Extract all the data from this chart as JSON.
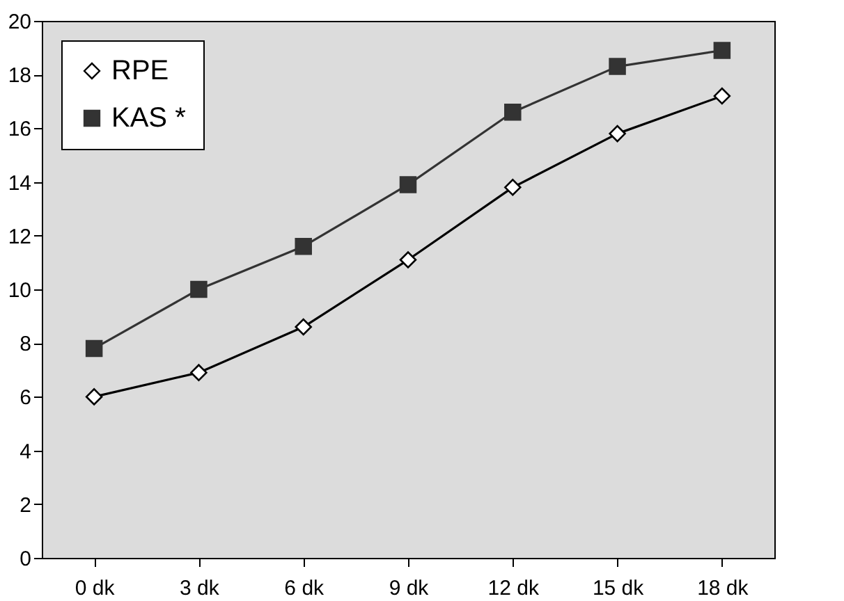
{
  "chart_data": {
    "type": "line",
    "categories": [
      "0 dk",
      "3 dk",
      "6 dk",
      "9 dk",
      "12 dk",
      "15 dk",
      "18 dk"
    ],
    "series": [
      {
        "name": "RPE",
        "color": "#000000",
        "marker": "diamond",
        "values": [
          6.0,
          6.9,
          8.6,
          11.1,
          13.8,
          15.8,
          17.2
        ]
      },
      {
        "name": "KAS *",
        "color": "#333333",
        "marker": "square",
        "values": [
          7.8,
          10.0,
          11.6,
          13.9,
          16.6,
          18.3,
          18.9
        ]
      }
    ],
    "ylim": [
      0,
      20
    ],
    "yticks": [
      0,
      2,
      4,
      6,
      8,
      10,
      12,
      14,
      16,
      18,
      20
    ],
    "grid": false,
    "legend": "top left",
    "line_style": "solid"
  }
}
